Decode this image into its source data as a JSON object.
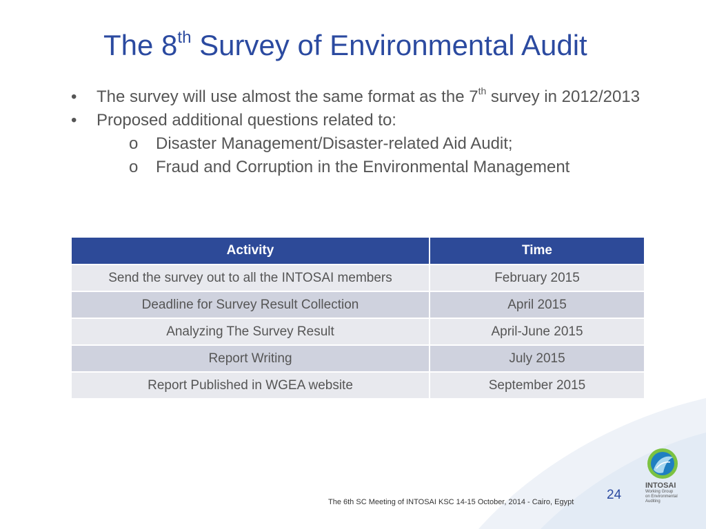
{
  "slide": {
    "title_main": "The 8",
    "title_sup": "th",
    "title_rest": " Survey of Environmental Audit"
  },
  "bullets": {
    "marker": "•",
    "sub_marker": "o",
    "item1": {
      "before": "The survey will use almost the same format as the 7",
      "sup": "th",
      "after": " survey in 2012/2013"
    },
    "item2": "Proposed additional questions related to:",
    "subitems": [
      "Disaster Management/Disaster-related Aid Audit;",
      "Fraud and Corruption in the Environmental Management"
    ]
  },
  "table": {
    "headers": [
      "Activity",
      "Time"
    ],
    "rows": [
      {
        "activity": "Send the survey out to all the INTOSAI members",
        "time": "February 2015"
      },
      {
        "activity": "Deadline for Survey Result Collection",
        "time": "April 2015"
      },
      {
        "activity": "Analyzing The Survey Result",
        "time": "April-June 2015"
      },
      {
        "activity": "Report Writing",
        "time": "July 2015"
      },
      {
        "activity": "Report Published in WGEA website",
        "time": "September 2015"
      }
    ]
  },
  "footer": {
    "text": "The 6th SC Meeting of  INTOSAI KSC 14-15 October, 2014 - Cairo, Egypt",
    "page_number": "24"
  },
  "logo": {
    "icon": "globe-icon",
    "name": "INTOSAI",
    "sub_lines": [
      "Working Group",
      "on Environmental",
      "Auditing"
    ]
  },
  "colors": {
    "title": "#2b4aa0",
    "header_bg": "#2d4a98",
    "row_light": "#e8e9ee",
    "row_dark": "#cfd2de",
    "text": "#555555"
  }
}
